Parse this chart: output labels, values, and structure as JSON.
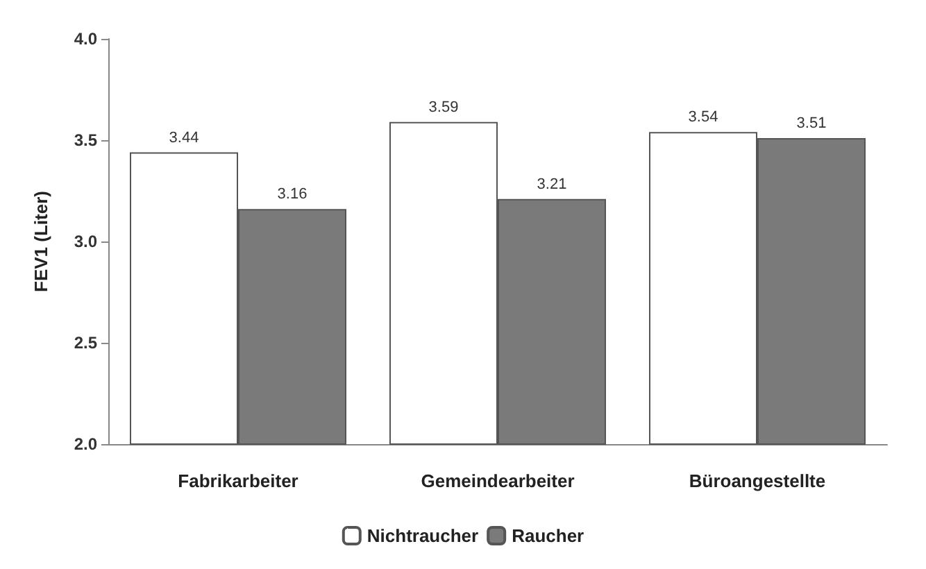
{
  "chart_data": {
    "type": "bar",
    "ylabel": "FEV1 (Liter)",
    "categories": [
      "Fabrikarbeiter",
      "Gemeindearbeiter",
      "Büroangestellte"
    ],
    "series": [
      {
        "name": "Nichtraucher",
        "color": "#ffffff",
        "values": [
          3.44,
          3.59,
          3.54
        ]
      },
      {
        "name": "Raucher",
        "color": "#7a7a7a",
        "values": [
          3.16,
          3.21,
          3.51
        ]
      }
    ],
    "ylim": [
      2.0,
      4.0
    ],
    "yticks": [
      {
        "value": 2,
        "label": "2.0"
      },
      {
        "value": 2.5,
        "label": "2.5"
      },
      {
        "value": 3,
        "label": "3.0"
      },
      {
        "value": 3.5,
        "label": "3.5"
      },
      {
        "value": 4,
        "label": "4.0"
      }
    ],
    "data_labels": true,
    "grid": false,
    "legend": "bottom"
  }
}
